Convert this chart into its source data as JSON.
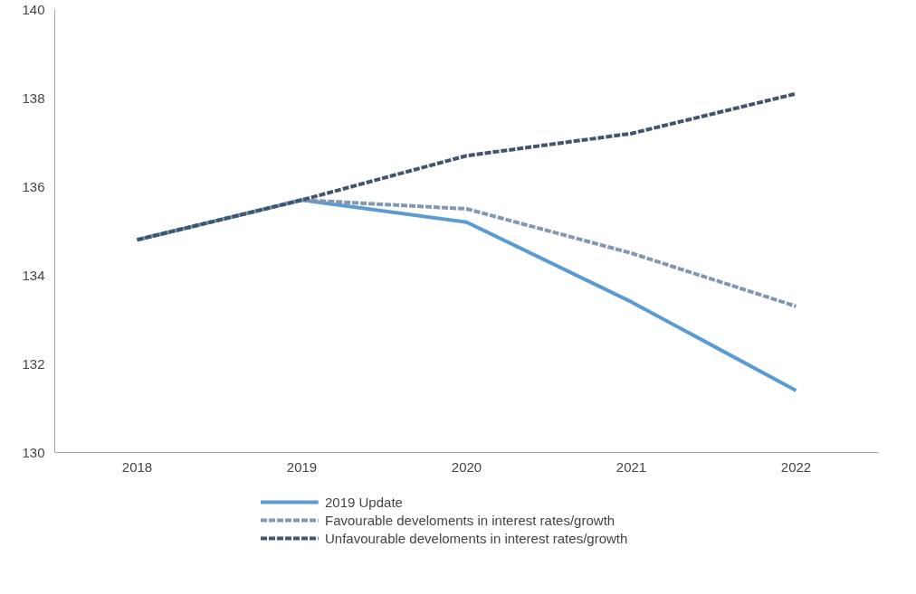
{
  "chart_data": {
    "type": "line",
    "categories": [
      "2018",
      "2019",
      "2020",
      "2021",
      "2022"
    ],
    "series": [
      {
        "name": "2019 Update",
        "color": "#5b9bd5",
        "line_style": "solid",
        "values": [
          134.8,
          135.7,
          135.2,
          133.4,
          131.4
        ]
      },
      {
        "name": "Favourable develoments in interest rates/growth",
        "color": "#8497b0",
        "line_style": "dashed",
        "values": [
          134.8,
          135.7,
          135.5,
          134.5,
          133.3
        ]
      },
      {
        "name": "Unfavourable develoments in interest rates/growth",
        "color": "#44546a",
        "line_style": "dashed",
        "values": [
          134.8,
          135.7,
          136.7,
          137.2,
          138.1
        ]
      }
    ],
    "ylim": [
      130,
      140
    ],
    "yticks": [
      130,
      132,
      134,
      136,
      138,
      140
    ],
    "grid": false,
    "legend": "bottom",
    "marker": "none"
  }
}
